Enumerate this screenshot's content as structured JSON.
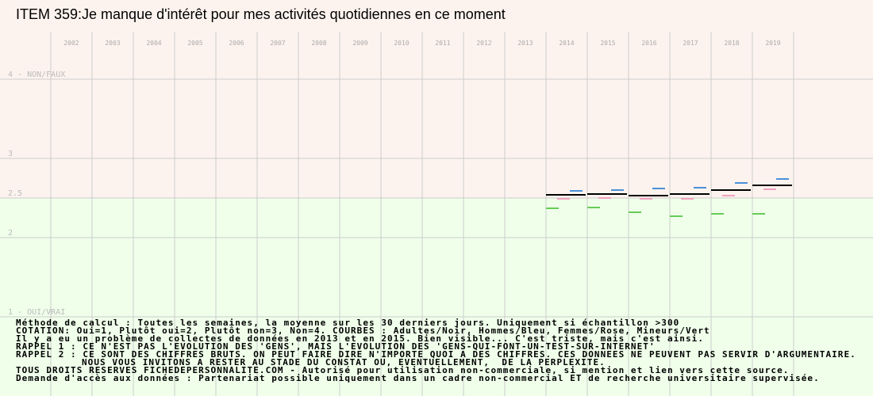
{
  "chart_data": {
    "type": "segment",
    "title": "ITEM 359:Je manque d'intérêt pour mes activités quotidiennes en ce moment",
    "categories": [
      "2002",
      "2003",
      "2004",
      "2005",
      "2006",
      "2007",
      "2008",
      "2009",
      "2010",
      "2011",
      "2012",
      "2013",
      "2014",
      "2015",
      "2016",
      "2017",
      "2018",
      "2019"
    ],
    "ylim": [
      0,
      5
    ],
    "yticks": [
      {
        "value": 4,
        "label": "4 - NON/FAUX"
      },
      3,
      2.5,
      2,
      {
        "value": 1,
        "label": "1 - OUI/VRAI"
      }
    ],
    "grid": true,
    "series": [
      {
        "color": "#000000",
        "values": [
          null,
          null,
          null,
          null,
          null,
          null,
          null,
          null,
          null,
          null,
          null,
          null,
          2.54,
          2.55,
          2.53,
          2.55,
          2.6,
          2.66
        ]
      },
      {
        "color": "#66cc55",
        "values": [
          null,
          null,
          null,
          null,
          null,
          null,
          null,
          null,
          null,
          null,
          null,
          null,
          2.37,
          2.38,
          2.32,
          2.27,
          2.3,
          2.3
        ]
      },
      {
        "color": "#f0a0c0",
        "values": [
          null,
          null,
          null,
          null,
          null,
          null,
          null,
          null,
          null,
          null,
          null,
          null,
          2.49,
          2.5,
          2.49,
          2.49,
          2.53,
          2.61
        ]
      },
      {
        "color": "#4a90d9",
        "values": [
          null,
          null,
          null,
          null,
          null,
          null,
          null,
          null,
          null,
          null,
          null,
          null,
          2.59,
          2.6,
          2.62,
          2.63,
          2.69,
          2.74
        ]
      }
    ]
  },
  "notes": [
    "Méthode de calcul : Toutes les semaines, la moyenne sur les 30 derniers jours. Uniquement si échantillon >300",
    "COTATION: Oui=1, Plutôt oui=2, Plutôt non=3, Non=4. COURBES : Adultes/Noir, Hommes/Bleu, Femmes/Rose, Mineurs/Vert",
    "Il y a eu un problème de collectes de données en 2013 et en 2015. Bien visible... C'est triste, mais c'est ainsi.",
    "RAPPEL 1 : CE N'EST PAS L'EVOLUTION DES 'GENS', MAIS L'EVOLUTION DES 'GENS-QUI-FONT-UN-TEST-SUR-INTERNET'",
    "RAPPEL 2 : CE SONT DES CHIFFRES BRUTS. ON PEUT FAIRE DIRE N'IMPORTE QUOI A DES CHIFFRES. CES DONNEES NE PEUVENT PAS SERVIR D'ARGUMENTAIRE.",
    "NOUS VOUS INVITONS A RESTER AU STADE DU CONSTAT OU, EVENTUELLEMENT,  DE LA PERPLEXITE.",
    "TOUS DROITS RESERVES FICHEDEPERSONNALITE.COM - Autorisé pour utilisation non-commerciale, si mention et lien vers cette source.",
    "Demande d'accès aux données : Partenariat possible uniquement dans un cadre non-commercial ET de recherche universitaire supervisée."
  ]
}
